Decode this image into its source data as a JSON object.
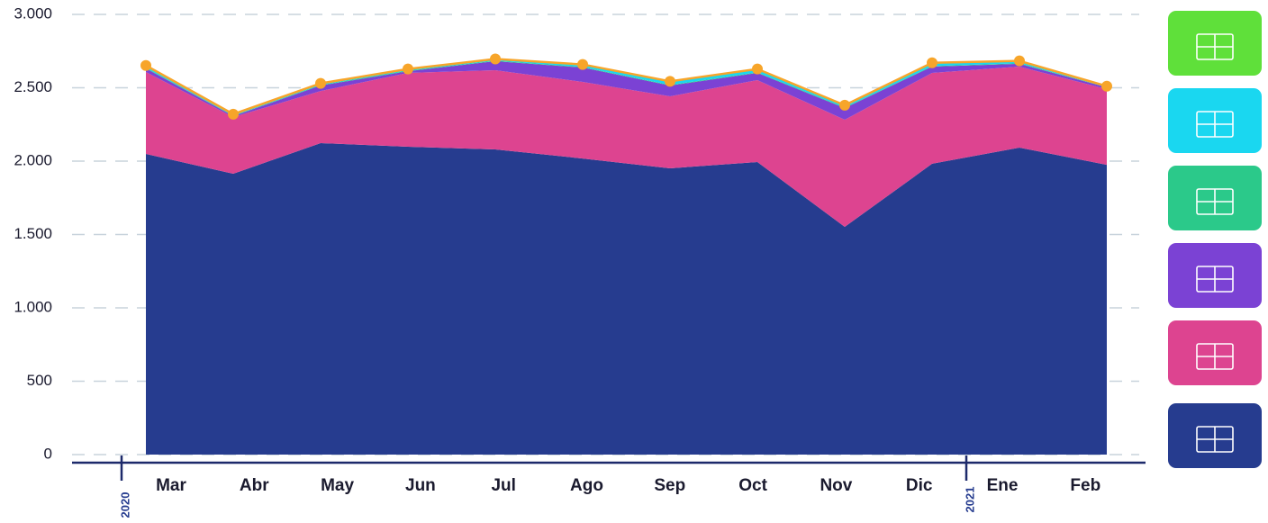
{
  "chart_data": {
    "type": "stacked_area",
    "categories": [
      "Mar",
      "Abr",
      "May",
      "Jun",
      "Jul",
      "Ago",
      "Sep",
      "Oct",
      "Nov",
      "Dic",
      "Ene",
      "Feb"
    ],
    "years": [
      "2020",
      "2021"
    ],
    "series": [
      {
        "color": "#263c8f",
        "values": [
          2049,
          1914,
          2123,
          2098,
          2080,
          2018,
          1951,
          1994,
          1552,
          1982,
          2092,
          1975
        ]
      },
      {
        "color": "#dd4490",
        "values": [
          558,
          386,
          355,
          503,
          540,
          522,
          491,
          558,
          730,
          619,
          552,
          516
        ]
      },
      {
        "color": "#7b42d4",
        "values": [
          25,
          7,
          37,
          12,
          61,
          98,
          73,
          49,
          80,
          43,
          19,
          12
        ]
      },
      {
        "color": "#2bc98a",
        "values": [
          4,
          3,
          4,
          4,
          4,
          4,
          4,
          4,
          4,
          4,
          4,
          2
        ]
      },
      {
        "color": "#1ad7f0",
        "values": [
          10,
          6,
          6,
          6,
          6,
          12,
          20,
          18,
          10,
          16,
          10,
          3
        ]
      },
      {
        "color": "#5fe03a",
        "values": [
          6,
          4,
          5,
          5,
          5,
          5,
          5,
          5,
          5,
          6,
          6,
          3
        ]
      }
    ],
    "total_color": "#f7a52a",
    "ylim": [
      0,
      3000
    ],
    "yticks": [
      0,
      500,
      {
        "value": 1000,
        "label": "1.000"
      },
      {
        "value": 1500,
        "label": "1.500"
      },
      {
        "value": 2000,
        "label": "2.000"
      },
      {
        "value": 2500,
        "label": "2.500"
      },
      {
        "value": 3000,
        "label": "3.000"
      }
    ],
    "grid": true
  }
}
